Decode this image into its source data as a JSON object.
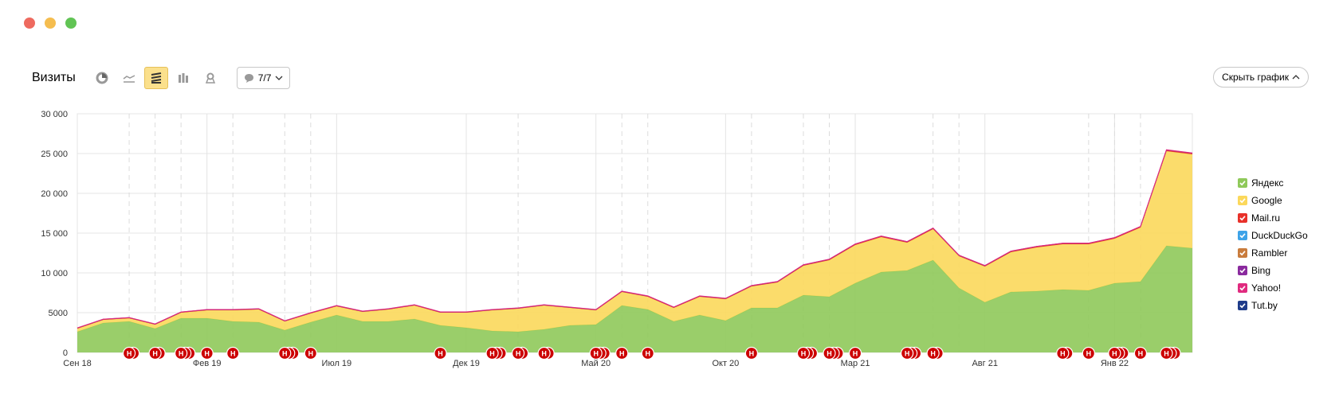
{
  "window": {
    "dots": [
      "#ee6a5f",
      "#f5bd4f",
      "#61c454"
    ]
  },
  "toolbar": {
    "title": "Визиты",
    "icons": [
      "pie-chart-icon",
      "line-chart-icon",
      "area-chart-icon",
      "bar-chart-icon",
      "map-icon"
    ],
    "active_icon": "area-chart-icon",
    "annotations_label": "7/7"
  },
  "hide_chart_label": "Скрыть график",
  "chart_data": {
    "type": "area",
    "stacked": true,
    "y_ticks": [
      "0",
      "5000",
      "10 000",
      "15 000",
      "20 000",
      "25 000",
      "30 000"
    ],
    "ylim": [
      0,
      30000
    ],
    "x_ticks": [
      "Сен 18",
      "Фев 19",
      "Июл 19",
      "Дек 19",
      "Май 20",
      "Окт 20",
      "Мар 21",
      "Авг 21",
      "Янв 22"
    ],
    "x_tick_index": [
      0,
      5,
      10,
      15,
      20,
      25,
      30,
      35,
      40
    ],
    "n_points": 44,
    "series": [
      {
        "name": "Яндекс",
        "color": "#8fc95a",
        "values": [
          2600,
          3700,
          3900,
          3000,
          4300,
          4300,
          3900,
          3800,
          2800,
          3800,
          4700,
          3900,
          3900,
          4200,
          3400,
          3100,
          2700,
          2600,
          2900,
          3400,
          3500,
          5900,
          5400,
          3900,
          4700,
          4000,
          5600,
          5600,
          7200,
          7000,
          8700,
          10100,
          10300,
          11600,
          8100,
          6300,
          7600,
          7700,
          7900,
          7800,
          8700,
          8900,
          13400,
          13100
        ]
      },
      {
        "name": "Google",
        "color": "#fbd85b",
        "values": [
          400,
          400,
          400,
          500,
          700,
          1000,
          1400,
          1600,
          1100,
          1100,
          1100,
          1200,
          1500,
          1700,
          1600,
          1900,
          2600,
          2900,
          3000,
          2200,
          1800,
          1700,
          1600,
          1700,
          2300,
          2700,
          2700,
          3200,
          3700,
          4600,
          4800,
          4400,
          3500,
          3900,
          4000,
          4500,
          5000,
          5500,
          5700,
          5800,
          5600,
          6800,
          11900,
          11800
        ]
      },
      {
        "name": "Mail.ru",
        "color": "#e8312a",
        "values": [
          50,
          50,
          50,
          50,
          50,
          60,
          60,
          60,
          50,
          60,
          60,
          60,
          60,
          60,
          60,
          60,
          60,
          60,
          60,
          60,
          60,
          70,
          70,
          70,
          70,
          70,
          80,
          80,
          90,
          90,
          100,
          100,
          100,
          100,
          90,
          90,
          100,
          100,
          100,
          100,
          100,
          100,
          120,
          120
        ]
      },
      {
        "name": "DuckDuckGo",
        "color": "#3ea3e8",
        "values": [
          0,
          0,
          0,
          0,
          0,
          0,
          0,
          0,
          0,
          0,
          0,
          0,
          0,
          0,
          0,
          0,
          0,
          0,
          0,
          0,
          0,
          0,
          0,
          0,
          0,
          0,
          0,
          0,
          0,
          0,
          0,
          0,
          0,
          0,
          0,
          0,
          0,
          0,
          0,
          0,
          0,
          0,
          0,
          0
        ]
      },
      {
        "name": "Rambler",
        "color": "#c97c3d",
        "values": [
          0,
          0,
          0,
          0,
          0,
          0,
          0,
          0,
          0,
          0,
          0,
          0,
          0,
          0,
          0,
          0,
          0,
          0,
          0,
          0,
          0,
          0,
          0,
          0,
          0,
          0,
          0,
          0,
          0,
          0,
          0,
          0,
          0,
          0,
          0,
          0,
          0,
          0,
          0,
          0,
          0,
          0,
          0,
          0
        ]
      },
      {
        "name": "Bing",
        "color": "#8a2a9e",
        "values": [
          20,
          20,
          20,
          20,
          20,
          20,
          20,
          20,
          20,
          20,
          20,
          20,
          20,
          20,
          20,
          20,
          20,
          20,
          20,
          20,
          20,
          20,
          20,
          20,
          20,
          20,
          20,
          20,
          20,
          20,
          20,
          20,
          20,
          20,
          20,
          20,
          20,
          20,
          20,
          20,
          20,
          20,
          30,
          30
        ]
      },
      {
        "name": "Yahoo!",
        "color": "#e02a7f",
        "values": [
          20,
          20,
          20,
          20,
          20,
          20,
          20,
          20,
          20,
          20,
          20,
          20,
          20,
          20,
          20,
          20,
          20,
          20,
          20,
          20,
          20,
          20,
          20,
          20,
          20,
          20,
          20,
          20,
          20,
          20,
          20,
          20,
          20,
          20,
          20,
          20,
          20,
          20,
          20,
          20,
          20,
          20,
          30,
          30
        ]
      },
      {
        "name": "Tut.by",
        "color": "#1f3c8a",
        "values": [
          0,
          0,
          0,
          0,
          0,
          0,
          0,
          0,
          0,
          0,
          0,
          0,
          0,
          0,
          0,
          0,
          0,
          0,
          0,
          0,
          0,
          0,
          0,
          0,
          0,
          0,
          0,
          0,
          0,
          0,
          0,
          0,
          0,
          0,
          0,
          0,
          0,
          0,
          0,
          0,
          0,
          0,
          0,
          0
        ]
      }
    ],
    "dashed_gridline_index": [
      2,
      3,
      4,
      6,
      8,
      9,
      17,
      21,
      22,
      26,
      28,
      29,
      33,
      34,
      39,
      40,
      41
    ],
    "annotation_markers": [
      {
        "index": 2,
        "count": 2
      },
      {
        "index": 3,
        "count": 2
      },
      {
        "index": 4,
        "count": 3
      },
      {
        "index": 5,
        "count": 1
      },
      {
        "index": 6,
        "count": 1
      },
      {
        "index": 8,
        "count": 3
      },
      {
        "index": 9,
        "count": 1
      },
      {
        "index": 14,
        "count": 1
      },
      {
        "index": 16,
        "count": 3
      },
      {
        "index": 17,
        "count": 2
      },
      {
        "index": 18,
        "count": 2
      },
      {
        "index": 20,
        "count": 3
      },
      {
        "index": 21,
        "count": 1
      },
      {
        "index": 22,
        "count": 1
      },
      {
        "index": 26,
        "count": 1
      },
      {
        "index": 28,
        "count": 3
      },
      {
        "index": 29,
        "count": 3
      },
      {
        "index": 30,
        "count": 1
      },
      {
        "index": 32,
        "count": 3
      },
      {
        "index": 33,
        "count": 2
      },
      {
        "index": 38,
        "count": 2
      },
      {
        "index": 39,
        "count": 1
      },
      {
        "index": 40,
        "count": 3
      },
      {
        "index": 41,
        "count": 1
      },
      {
        "index": 42,
        "count": 3
      }
    ],
    "marker_letter": "Н",
    "marker_color": "#cc0000",
    "grid": true,
    "legend_position": "right"
  }
}
